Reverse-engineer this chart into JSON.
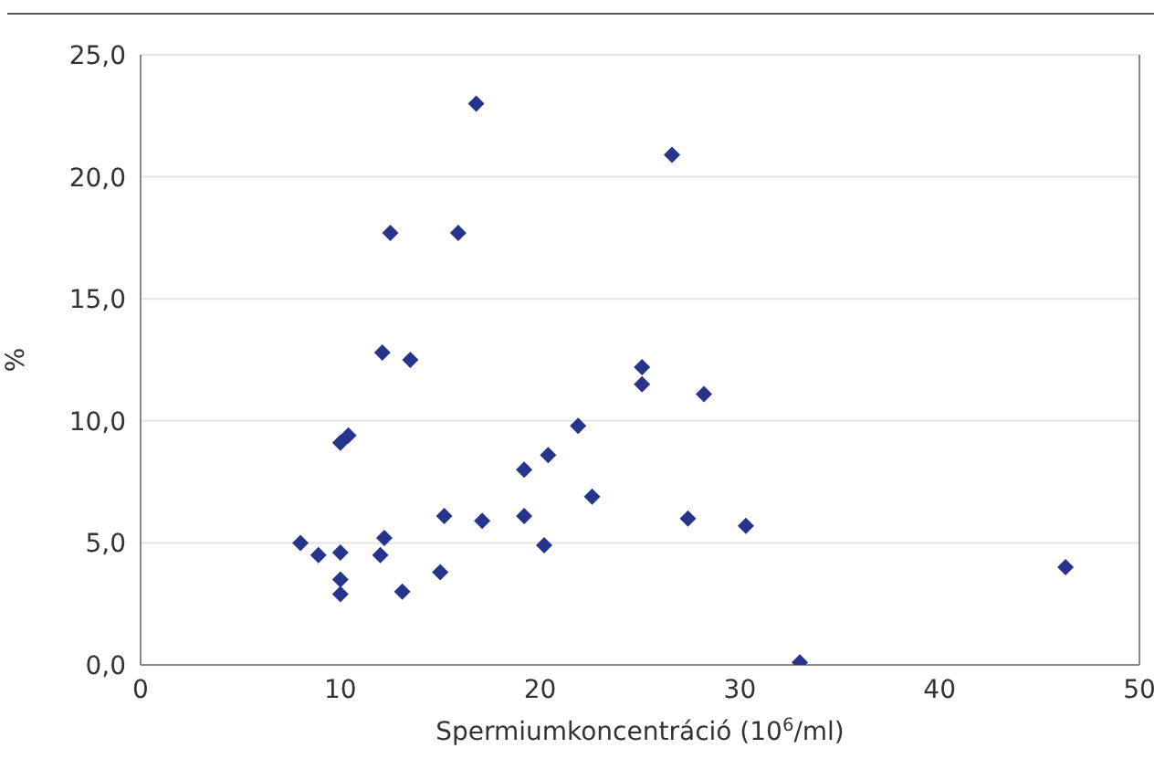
{
  "chart_data": {
    "type": "scatter",
    "xlabel": "Spermiumkoncentráció (10$^{6}$/ml)",
    "ylabel": "%",
    "xlim": [
      0,
      50
    ],
    "xticks": [
      0,
      10,
      20,
      30,
      40,
      50
    ],
    "ylim": [
      0,
      25
    ],
    "yticks": [
      {
        "value": 0,
        "label": "0,0"
      },
      {
        "value": 5,
        "label": "5,0"
      },
      {
        "value": 10,
        "label": "10,0"
      },
      {
        "value": 15,
        "label": "15,0"
      },
      {
        "value": 20,
        "label": "20,0"
      },
      {
        "value": 25,
        "label": "25,0"
      }
    ],
    "grid": "y",
    "marker": "diamond",
    "series": [
      {
        "color": "#27348b",
        "x": [
          8.0,
          8.9,
          10.0,
          10.0,
          10.0,
          10.0,
          10.4,
          12.1,
          13.5,
          12.5,
          15.9,
          16.8,
          12.2,
          12.0,
          13.1,
          15.0,
          15.2,
          17.1,
          19.2,
          19.2,
          20.4,
          20.2,
          21.9,
          22.6,
          26.6,
          25.1,
          25.1,
          28.2,
          27.4,
          30.3,
          46.3,
          33.0
        ],
        "values": [
          5.0,
          4.5,
          4.6,
          3.5,
          2.9,
          9.1,
          9.4,
          12.8,
          12.5,
          17.7,
          17.7,
          23.0,
          5.2,
          4.5,
          3.0,
          3.8,
          6.1,
          5.9,
          8.0,
          6.1,
          8.6,
          4.9,
          9.8,
          6.9,
          20.9,
          12.2,
          11.5,
          11.1,
          6.0,
          5.7,
          4.0,
          0.1
        ]
      }
    ]
  }
}
